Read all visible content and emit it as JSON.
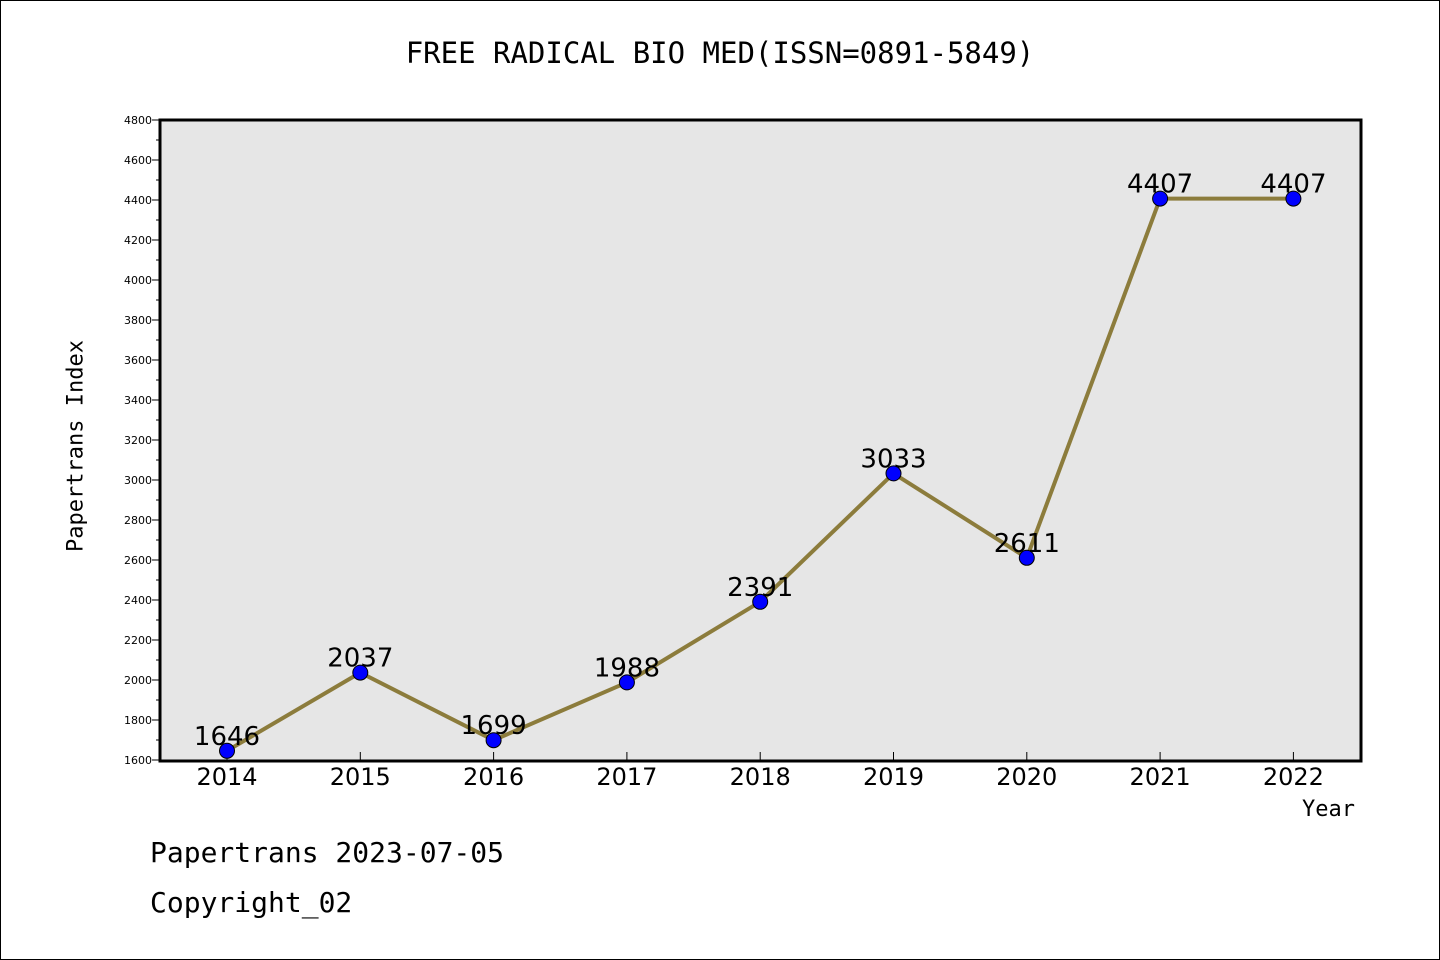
{
  "title": "FREE RADICAL BIO MED(ISSN=0891-5849)",
  "footer": {
    "line1": "Papertrans 2023-07-05",
    "line2": "Copyright_02"
  },
  "colors": {
    "plot_background": "#e6e6e6",
    "line": "#8c7c3c",
    "marker": "#0000ff"
  },
  "chart_data": {
    "type": "line",
    "xlabel": "Year",
    "ylabel": "Papertrans Index",
    "categories": [
      "2014",
      "2015",
      "2016",
      "2017",
      "2018",
      "2019",
      "2020",
      "2021",
      "2022"
    ],
    "series": [
      {
        "values": [
          1646,
          2037,
          1699,
          1988,
          2391,
          3033,
          2611,
          4407,
          4407
        ]
      }
    ],
    "ylim": [
      1600,
      4800
    ],
    "yticks": [
      1600,
      1800,
      2000,
      2200,
      2400,
      2600,
      2800,
      3000,
      3200,
      3400,
      3600,
      3800,
      4000,
      4200,
      4400,
      4600,
      4800
    ],
    "data_labels": [
      "1646",
      "2037",
      "1699",
      "1988",
      "2391",
      "3033",
      "2611",
      "4407",
      "4407"
    ],
    "grid": false,
    "legend": "none"
  }
}
